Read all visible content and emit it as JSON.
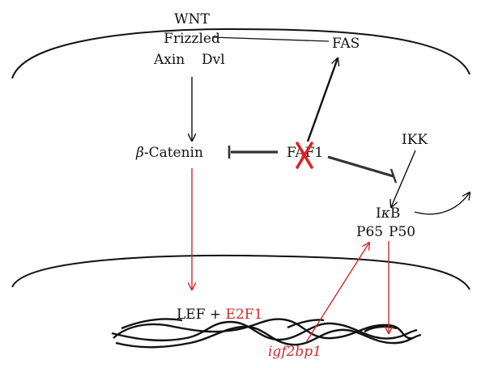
{
  "colors": {
    "black": "#111111",
    "red": "#d42a2a",
    "inhibit_gray": "#333333",
    "background": "#ffffff"
  },
  "labels": {
    "wnt": "WNT",
    "frizzled": "Frizzled",
    "axin": "Axin",
    "dvl": "Dvl",
    "fas": "FAS",
    "beta_symbol": "β",
    "catenin_text": "-Catenin",
    "faf1": "FAF1",
    "ikk": "IKK",
    "ikb_i": "I",
    "ikb_kappa": "κ",
    "ikb_b": "B",
    "p65": "P65",
    "p50": "P50",
    "lef_plus": "LEF + ",
    "e2f1": "E2F1",
    "igf2bp1": "igf2bp1"
  },
  "markers": {
    "faf1_knockout": "red-cross-icon"
  }
}
